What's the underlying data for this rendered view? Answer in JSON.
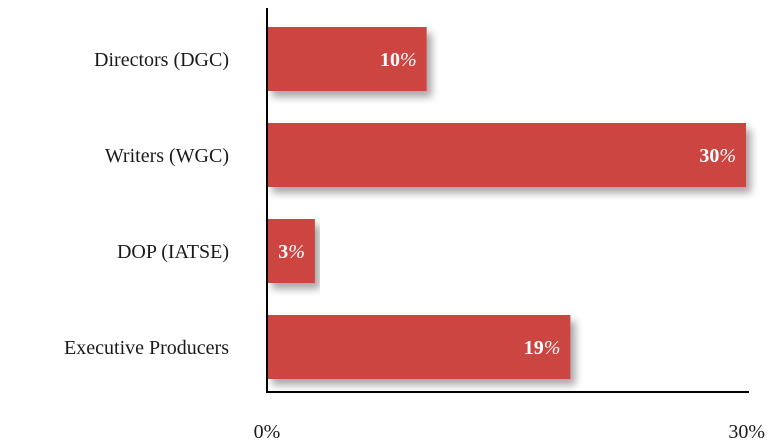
{
  "chart_data": {
    "type": "bar",
    "orientation": "horizontal",
    "categories": [
      "Directors (DGC)",
      "Writers (WGC)",
      "DOP (IATSE)",
      "Executive Producers"
    ],
    "values": [
      10,
      30,
      3,
      19
    ],
    "data_labels": [
      "10%",
      "30%",
      "3%",
      "19%"
    ],
    "xlim": [
      0,
      30
    ],
    "x_ticks": [
      0,
      30
    ],
    "x_tick_labels": [
      "0%",
      "30%"
    ],
    "title": "",
    "xlabel": "",
    "ylabel": "",
    "grid": false,
    "legend": "none",
    "colors": {
      "bar": "#cc4440",
      "axis": "#000000",
      "text": "#1a1a1a",
      "data_label": "#ffffff"
    }
  }
}
